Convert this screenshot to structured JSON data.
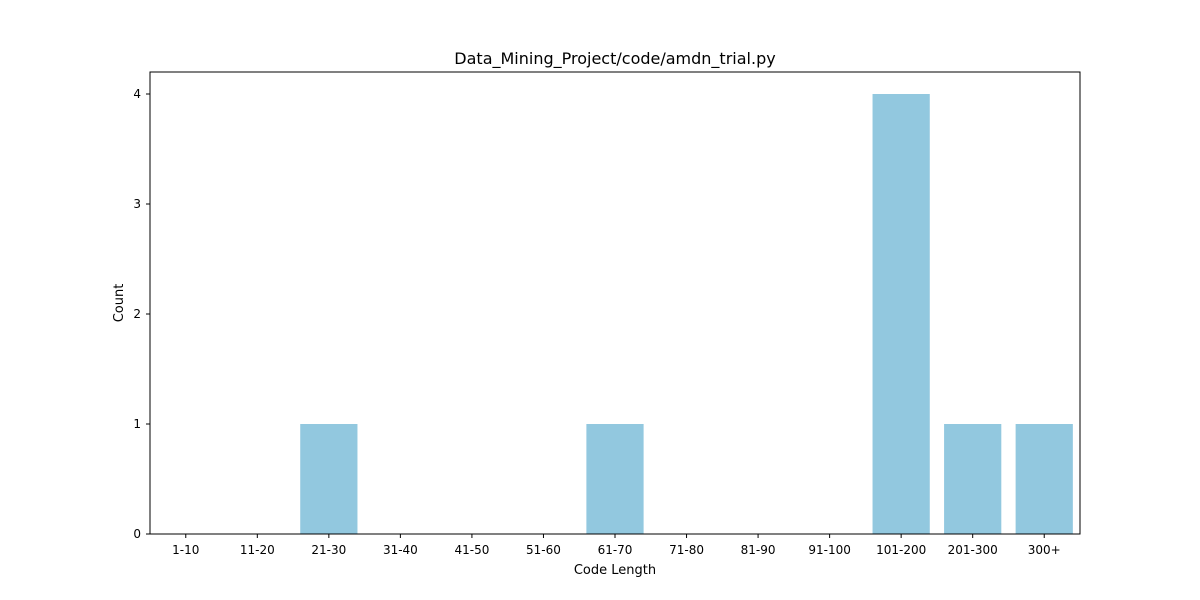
{
  "chart_data": {
    "type": "bar",
    "title": "Data_Mining_Project/code/amdn_trial.py",
    "xlabel": "Code Length",
    "ylabel": "Count",
    "categories": [
      "1-10",
      "11-20",
      "21-30",
      "31-40",
      "41-50",
      "51-60",
      "61-70",
      "71-80",
      "81-90",
      "91-100",
      "101-200",
      "201-300",
      "300+"
    ],
    "values": [
      0,
      0,
      1,
      0,
      0,
      0,
      1,
      0,
      0,
      0,
      4,
      1,
      1
    ],
    "ylim": [
      0,
      4.2
    ],
    "yticks": [
      0,
      1,
      2,
      3,
      4
    ],
    "bar_color": "#92c8df",
    "grid": false,
    "legend": false
  }
}
